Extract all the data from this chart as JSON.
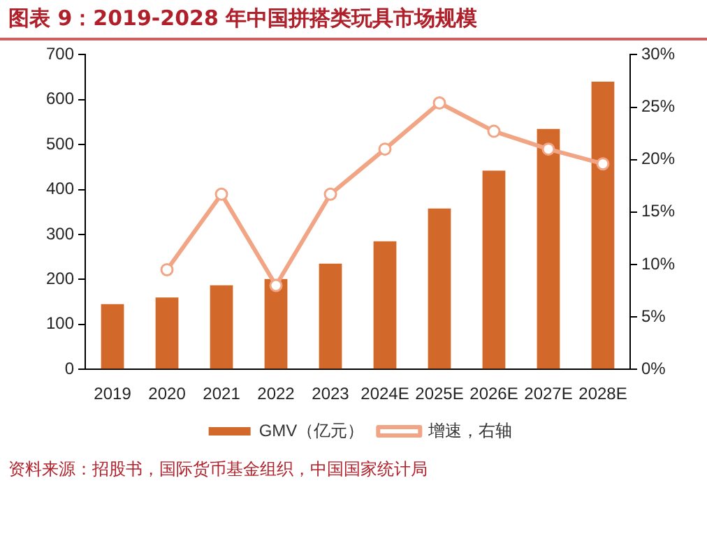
{
  "chart_data": {
    "type": "bar",
    "title": "图表 9：2019-2028 年中国拼搭类玩具市场规模",
    "categories": [
      "2019",
      "2020",
      "2021",
      "2022",
      "2023",
      "2024E",
      "2025E",
      "2026E",
      "2027E",
      "2028E"
    ],
    "series": [
      {
        "name": "GMV（亿元）",
        "color": "#d2692a",
        "values": [
          145,
          160,
          187,
          201,
          235,
          285,
          358,
          442,
          535,
          640
        ]
      },
      {
        "name": "增速，右轴",
        "type": "line",
        "axis": "y2",
        "color": "#f2a585",
        "marker": "circle",
        "values": [
          null,
          9.5,
          16.7,
          8,
          16.7,
          21,
          25.4,
          22.7,
          21,
          19.6
        ]
      }
    ],
    "ylim": [
      0,
      700
    ],
    "yticks": [
      0,
      100,
      200,
      300,
      400,
      500,
      600,
      700
    ],
    "y2lim": [
      0,
      30
    ],
    "y2ticks": [
      {
        "value": 0,
        "label": "0%"
      },
      {
        "value": 5,
        "label": "5%"
      },
      {
        "value": 10,
        "label": "10%"
      },
      {
        "value": 15,
        "label": "15%"
      },
      {
        "value": 20,
        "label": "20%"
      },
      {
        "value": 25,
        "label": "25%"
      },
      {
        "value": 30,
        "label": "30%"
      }
    ],
    "grid": false,
    "legend": "bottom",
    "annotations": [
      "资料来源：招股书，国际货币基金组织，中国国家统计局"
    ]
  }
}
